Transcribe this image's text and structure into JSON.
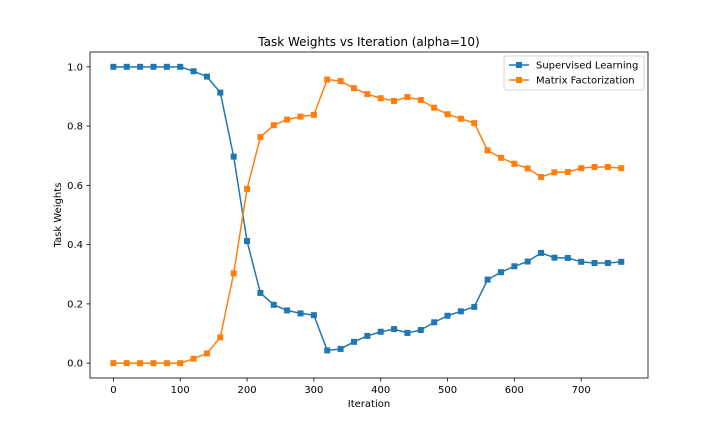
{
  "chart_data": {
    "type": "line",
    "title": "Task Weights vs Iteration (alpha=10)",
    "xlabel": "Iteration",
    "ylabel": "Task Weights",
    "xlim": [
      -35,
      800
    ],
    "ylim": [
      -0.05,
      1.05
    ],
    "xticks": [
      0,
      100,
      200,
      300,
      400,
      500,
      600,
      700
    ],
    "xtick_labels": [
      "0",
      "100",
      "200",
      "300",
      "400",
      "500",
      "600",
      "700"
    ],
    "yticks": [
      0.0,
      0.2,
      0.4,
      0.6,
      0.8,
      1.0
    ],
    "ytick_labels": [
      "0.0",
      "0.2",
      "0.4",
      "0.6",
      "0.8",
      "1.0"
    ],
    "grid": false,
    "legend_position": "top-right",
    "x": [
      0,
      20,
      40,
      60,
      80,
      100,
      120,
      140,
      160,
      180,
      200,
      220,
      240,
      260,
      280,
      300,
      320,
      340,
      360,
      380,
      400,
      420,
      440,
      460,
      480,
      500,
      520,
      540,
      560,
      580,
      600,
      620,
      640,
      660,
      680,
      700,
      720,
      740,
      760
    ],
    "series": [
      {
        "name": "Supervised Learning",
        "color": "#1f77b4",
        "marker": "square",
        "values": [
          1.0,
          1.0,
          1.0,
          1.0,
          1.0,
          1.0,
          0.985,
          0.967,
          0.913,
          0.697,
          0.412,
          0.237,
          0.197,
          0.178,
          0.168,
          0.162,
          0.043,
          0.048,
          0.072,
          0.092,
          0.106,
          0.115,
          0.102,
          0.112,
          0.138,
          0.16,
          0.175,
          0.19,
          0.282,
          0.307,
          0.327,
          0.343,
          0.372,
          0.356,
          0.355,
          0.342,
          0.338,
          0.338,
          0.342
        ]
      },
      {
        "name": "Matrix Factorization",
        "color": "#ff7f0e",
        "marker": "square",
        "values": [
          0.0,
          0.0,
          0.0,
          0.0,
          0.0,
          0.0,
          0.015,
          0.033,
          0.087,
          0.303,
          0.588,
          0.763,
          0.803,
          0.822,
          0.832,
          0.838,
          0.957,
          0.952,
          0.928,
          0.908,
          0.894,
          0.885,
          0.898,
          0.888,
          0.862,
          0.84,
          0.825,
          0.81,
          0.718,
          0.693,
          0.673,
          0.657,
          0.628,
          0.644,
          0.645,
          0.658,
          0.662,
          0.662,
          0.658
        ]
      }
    ]
  }
}
